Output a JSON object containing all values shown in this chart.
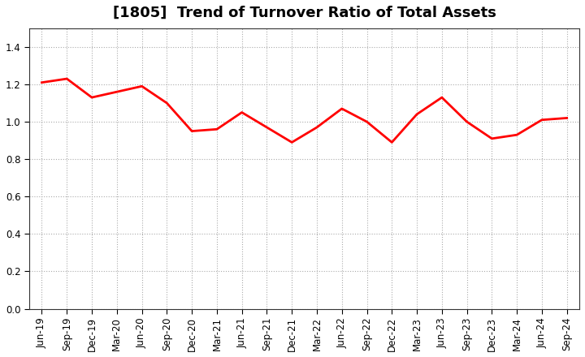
{
  "title": "[1805]  Trend of Turnover Ratio of Total Assets",
  "x_labels": [
    "Jun-19",
    "Sep-19",
    "Dec-19",
    "Mar-20",
    "Jun-20",
    "Sep-20",
    "Dec-20",
    "Mar-21",
    "Jun-21",
    "Sep-21",
    "Dec-21",
    "Mar-22",
    "Jun-22",
    "Sep-22",
    "Dec-22",
    "Mar-23",
    "Jun-23",
    "Sep-23",
    "Dec-23",
    "Mar-24",
    "Jun-24",
    "Sep-24"
  ],
  "y_values": [
    1.21,
    1.23,
    1.13,
    1.16,
    1.19,
    1.1,
    0.95,
    0.96,
    1.05,
    0.97,
    0.89,
    0.97,
    1.07,
    1.0,
    0.89,
    1.04,
    1.13,
    1.0,
    0.91,
    0.93,
    1.01,
    1.02
  ],
  "line_color": "#FF0000",
  "line_width": 2.0,
  "ylim": [
    0.0,
    1.5
  ],
  "yticks": [
    0.0,
    0.2,
    0.4,
    0.6,
    0.8,
    1.0,
    1.2,
    1.4
  ],
  "background_color": "#ffffff",
  "plot_bg_color": "#ffffff",
  "grid_color": "#aaaaaa",
  "title_fontsize": 13,
  "tick_fontsize": 8.5
}
